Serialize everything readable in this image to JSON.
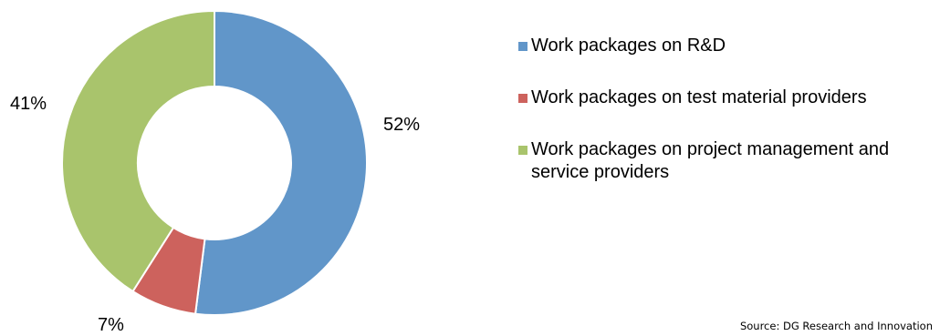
{
  "chart_data": {
    "type": "pie",
    "variant": "donut",
    "categories": [
      "Work packages on R&D",
      "Work packages on test material providers",
      "Work packages on project management and service providers"
    ],
    "values": [
      52,
      7,
      41
    ],
    "value_labels": [
      "52%",
      "7%",
      "41%"
    ],
    "colors": [
      "#6196C9",
      "#CD625D",
      "#A9C46C"
    ],
    "legend_position": "right",
    "start_angle": "top, clockwise"
  },
  "legend": {
    "items": [
      {
        "label": "Work packages on R&D",
        "color": "#6196C9"
      },
      {
        "label": "Work packages on test material providers",
        "color": "#CD625D"
      },
      {
        "label": "Work packages on project management and service providers",
        "color": "#A9C46C"
      }
    ]
  },
  "source": "Source: DG Research and Innovation"
}
